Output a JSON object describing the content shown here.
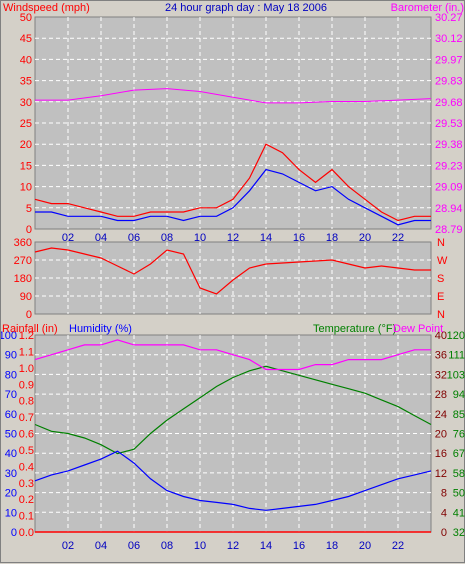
{
  "header": {
    "left_label": "Windspeed (mph)",
    "center_title": "24 hour graph day : May 18 2006",
    "right_label": "Barometer (in.)"
  },
  "colors": {
    "panel_bg": "#c0c0c0",
    "frame": "#d4d0c8",
    "grid": "#ffffff",
    "wind": "#ff0000",
    "gust_avg": "#0000ff",
    "barometer": "#ff00ff",
    "title": "#0000c0",
    "temperature": "#008000",
    "dewpoint": "#ff00ff",
    "rain": "#ff0000",
    "humidity": "#0000ff",
    "axis_dark": "#800000"
  },
  "x_ticks": [
    "02",
    "04",
    "06",
    "08",
    "10",
    "12",
    "14",
    "16",
    "18",
    "20",
    "22"
  ],
  "panels": {
    "wind": {
      "y_ticks": [
        "50",
        "45",
        "40",
        "35",
        "30",
        "25",
        "20",
        "15",
        "10",
        "5",
        "0"
      ],
      "baro_ticks": [
        "30.27",
        "30.12",
        "29.97",
        "29.83",
        "29.68",
        "29.53",
        "29.38",
        "29.23",
        "29.09",
        "28.94",
        "28.79"
      ]
    },
    "direction": {
      "y_ticks": [
        "360",
        "270",
        "180",
        "90",
        "0"
      ],
      "compass": [
        "N",
        "W",
        "S",
        "E",
        "N"
      ]
    },
    "lower": {
      "rain_label": "Rainfall (in)",
      "humidity_label": "Humidity (%)",
      "temp_label": "Temperature (°F)",
      "dew_label": "Dew Point",
      "humidity_ticks": [
        "100",
        "90",
        "80",
        "70",
        "60",
        "50",
        "40",
        "30",
        "20",
        "10",
        "0"
      ],
      "rain_ticks": [
        "1.2",
        "1.1",
        "1.0",
        "0.9",
        "0.8",
        "0.7",
        "0.6",
        "0.5",
        "0.4",
        "0.3",
        "0.2",
        "0.1",
        "0.0"
      ],
      "dew_ticks": [
        "40",
        "36",
        "32",
        "28",
        "24",
        "20",
        "16",
        "12",
        "8",
        "4",
        "0"
      ],
      "temp_ticks": [
        "120",
        "111",
        "103",
        "94",
        "85",
        "76",
        "67",
        "58",
        "50",
        "41",
        "32"
      ]
    }
  },
  "chart_data": [
    {
      "type": "line",
      "title": "24 hour graph day : May 18 2006",
      "xlabel": "",
      "ylabel": "Windspeed (mph)",
      "ylim": [
        0,
        50
      ],
      "y2label": "Barometer (in.)",
      "y2lim": [
        28.79,
        30.27
      ],
      "grid": true,
      "series": [
        {
          "name": "Windspeed (mph)",
          "x": [
            0,
            1,
            2,
            3,
            4,
            5,
            6,
            7,
            8,
            9,
            10,
            11,
            12,
            13,
            14,
            15,
            16,
            17,
            18,
            19,
            20,
            21,
            22,
            23,
            24
          ],
          "values": [
            7,
            6,
            6,
            5,
            4,
            3,
            3,
            4,
            4,
            4,
            5,
            5,
            7,
            12,
            20,
            18,
            14,
            11,
            14,
            10,
            7,
            4,
            2,
            3,
            3
          ]
        },
        {
          "x": [
            0,
            1,
            2,
            3,
            4,
            5,
            6,
            7,
            8,
            9,
            10,
            11,
            12,
            13,
            14,
            15,
            16,
            17,
            18,
            19,
            20,
            21,
            22,
            23,
            24
          ],
          "values": [
            4,
            4,
            3,
            3,
            3,
            2,
            2,
            3,
            3,
            2,
            3,
            3,
            5,
            9,
            14,
            13,
            11,
            9,
            10,
            7,
            5,
            3,
            1,
            2,
            2
          ]
        },
        {
          "name": "Barometer (in.)",
          "x": [
            0,
            2,
            4,
            6,
            8,
            10,
            12,
            14,
            16,
            18,
            20,
            22,
            24
          ],
          "values": [
            29.69,
            29.69,
            29.72,
            29.76,
            29.77,
            29.75,
            29.71,
            29.67,
            29.67,
            29.68,
            29.68,
            29.69,
            29.7
          ]
        }
      ]
    },
    {
      "type": "line",
      "ylabel": "",
      "ylim": [
        0,
        360
      ],
      "series": [
        {
          "x": [
            0,
            1,
            2,
            3,
            4,
            5,
            6,
            7,
            8,
            9,
            10,
            11,
            12,
            13,
            14,
            15,
            16,
            17,
            18,
            19,
            20,
            21,
            22,
            23,
            24
          ],
          "values": [
            310,
            330,
            320,
            300,
            280,
            240,
            200,
            250,
            320,
            300,
            130,
            100,
            170,
            230,
            250,
            255,
            260,
            265,
            270,
            250,
            230,
            240,
            230,
            220,
            220
          ]
        }
      ]
    },
    {
      "type": "line",
      "ylabel": "Humidity (%)",
      "ylim": [
        0,
        100
      ],
      "y2label": "Temperature (°F)",
      "y2lim": [
        32,
        120
      ],
      "series": [
        {
          "name": "Humidity (%)",
          "x": [
            0,
            1,
            2,
            3,
            4,
            5,
            6,
            7,
            8,
            9,
            10,
            11,
            12,
            13,
            14,
            15,
            16,
            17,
            18,
            19,
            20,
            21,
            22,
            23,
            24
          ],
          "values": [
            26,
            29,
            31,
            34,
            37,
            41,
            35,
            27,
            21,
            18,
            16,
            15,
            14,
            12,
            11,
            12,
            13,
            14,
            16,
            18,
            21,
            24,
            27,
            29,
            31
          ]
        },
        {
          "name": "Temperature (°F)",
          "x": [
            0,
            1,
            2,
            3,
            4,
            5,
            6,
            7,
            8,
            9,
            10,
            11,
            12,
            13,
            14,
            15,
            16,
            17,
            18,
            19,
            20,
            21,
            22,
            23,
            24
          ],
          "values": [
            80,
            77,
            76,
            74,
            71,
            67,
            69,
            76,
            82,
            87,
            92,
            97,
            101,
            104,
            106,
            104,
            102,
            100,
            98,
            96,
            94,
            91,
            88,
            84,
            80
          ]
        },
        {
          "name": "Dew Point",
          "x": [
            0,
            1,
            2,
            3,
            4,
            5,
            6,
            7,
            8,
            9,
            10,
            11,
            12,
            13,
            14,
            15,
            16,
            17,
            18,
            19,
            20,
            21,
            22,
            23,
            24
          ],
          "values": [
            35,
            36,
            37,
            38,
            38,
            39,
            38,
            38,
            38,
            38,
            37,
            37,
            36,
            35,
            33,
            33,
            33,
            34,
            34,
            35,
            35,
            35,
            36,
            37,
            37
          ]
        },
        {
          "name": "Rainfall (in)",
          "x": [
            0,
            24
          ],
          "values": [
            0,
            0
          ]
        }
      ]
    }
  ]
}
